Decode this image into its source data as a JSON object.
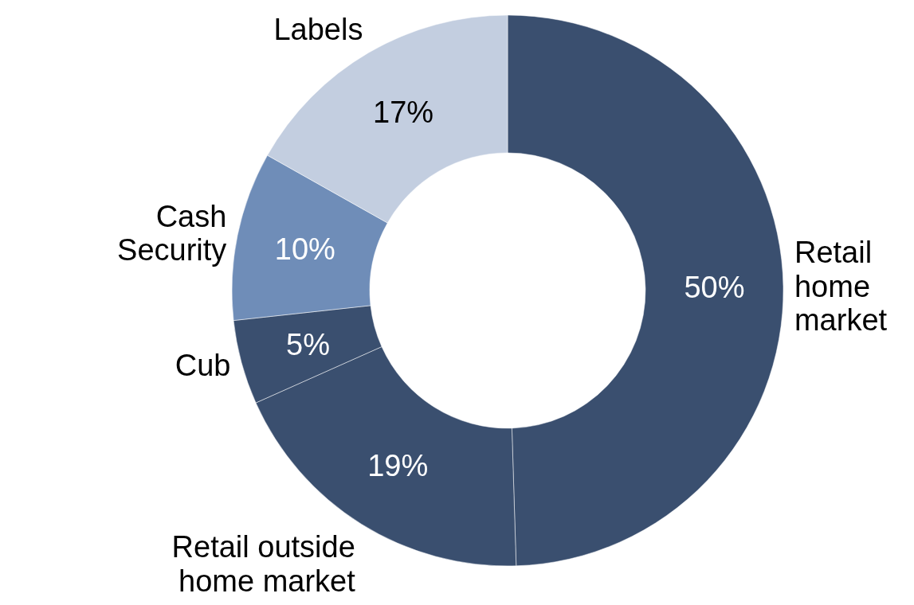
{
  "chart_data": {
    "type": "donut",
    "categories": [
      "Retail home market",
      "Retail outside home market",
      "Cub",
      "Cash Security",
      "Labels"
    ],
    "values": [
      50,
      19,
      5,
      10,
      17
    ],
    "value_labels": [
      "50%",
      "19%",
      "5%",
      "10%",
      "17%"
    ],
    "colors": [
      "#3a4f6f",
      "#3a4f6f",
      "#3a4f6f",
      "#6f8db8",
      "#c3cee0"
    ]
  }
}
